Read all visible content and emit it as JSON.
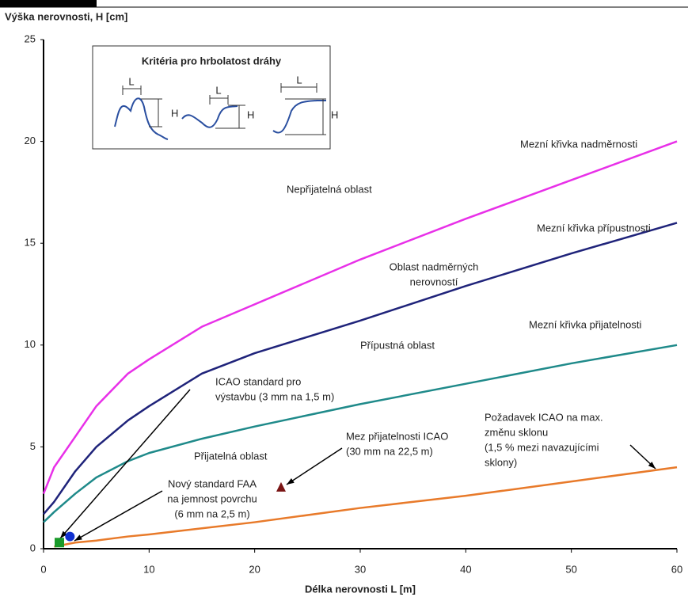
{
  "chart_data": {
    "type": "line",
    "y_label": "Výška nerovnosti, H [cm]",
    "x_label": "Délka nerovnosti L [m]",
    "x": [
      0,
      1,
      3,
      5,
      8,
      10,
      15,
      20,
      30,
      40,
      50,
      60
    ],
    "series": [
      {
        "name": "Mezní křivka nadměrnosti",
        "color": "#e830e8",
        "values": [
          2.7,
          4,
          5.5,
          7,
          8.6,
          9.3,
          10.9,
          12,
          14.2,
          16.2,
          18.1,
          20
        ]
      },
      {
        "name": "Mezní křivka přípustnosti",
        "color": "#1f237a",
        "values": [
          1.7,
          2.3,
          3.8,
          5,
          6.3,
          7,
          8.6,
          9.6,
          11.2,
          12.9,
          14.5,
          16
        ]
      },
      {
        "name": "Mezní křivka přijatelnosti",
        "color": "#1f8a8a",
        "values": [
          1.3,
          1.8,
          2.7,
          3.5,
          4.3,
          4.7,
          5.4,
          6,
          7.1,
          8.1,
          9.1,
          10
        ]
      },
      {
        "color": "#e87a2a",
        "values": [
          null,
          0.1,
          0.3,
          0.4,
          0.6,
          0.7,
          1,
          1.3,
          2,
          2.6,
          3.3,
          4
        ]
      }
    ],
    "markers": [
      {
        "x": 1.5,
        "y": 0.3,
        "color": "#1a9a2a",
        "shape": "square"
      },
      {
        "x": 2.5,
        "y": 0.6,
        "color": "#1030d0",
        "shape": "circle"
      },
      {
        "x": 22.5,
        "y": 3,
        "color": "#7a1515",
        "shape": "triangle"
      }
    ],
    "annotations": [
      [
        "Nepřijatelná oblast"
      ],
      [
        "Oblast nadměrných",
        "nerovností"
      ],
      [
        "Přípustná oblast"
      ],
      [
        "Přijatelná oblast"
      ],
      [
        "ICAO standard pro",
        "výstavbu (3 mm na 1,5 m)"
      ],
      [
        "Mez přijatelnosti ICAO",
        "(30 mm na 22,5 m)"
      ],
      [
        "Nový standard FAA",
        "na jemnost povrchu",
        "(6 mm na 2,5 m)"
      ],
      [
        "Požadavek ICAO na max.",
        "změnu sklonu",
        "(1,5 % mezi navazujícími",
        "sklony)"
      ]
    ],
    "inset": {
      "title": "Kritéria pro hrbolatost dráhy",
      "length_label": "L",
      "height_label": "H"
    },
    "xlim": [
      0,
      60
    ],
    "ylim": [
      0,
      25
    ],
    "xticks": [
      0,
      10,
      20,
      30,
      40,
      50,
      60
    ],
    "yticks": [
      0,
      5,
      10,
      15,
      20,
      25
    ],
    "grid": false
  }
}
